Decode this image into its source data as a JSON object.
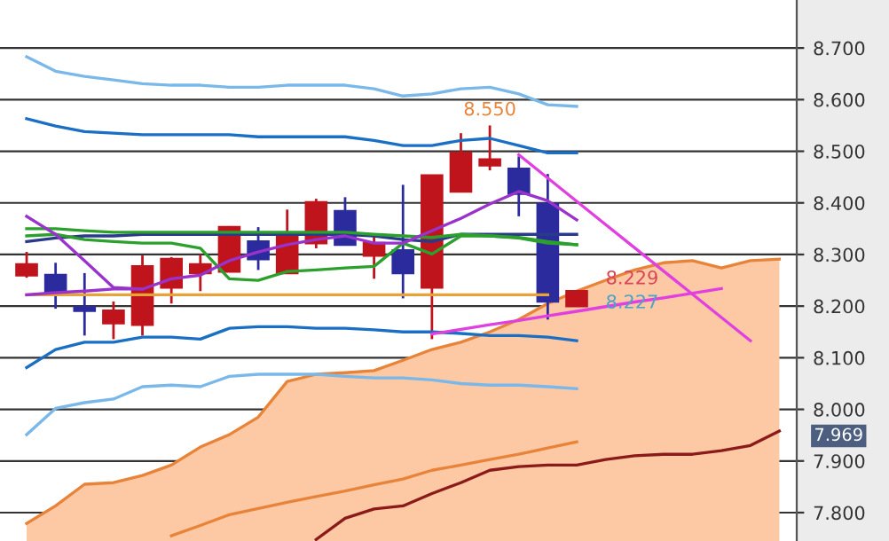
{
  "chart_data": {
    "type": "candlestick",
    "categories": [
      null,
      null,
      null,
      null,
      null,
      null,
      null,
      null,
      null,
      null,
      null,
      null,
      null,
      null,
      null,
      null,
      null,
      null,
      null,
      null,
      null,
      null,
      null,
      null,
      null,
      null,
      null
    ],
    "ohlc": [
      [
        8.26,
        8.305,
        8.255,
        8.281
      ],
      [
        8.26,
        8.284,
        8.195,
        8.226
      ],
      [
        8.198,
        8.264,
        8.143,
        8.191
      ],
      [
        8.167,
        8.209,
        8.136,
        8.191
      ],
      [
        8.164,
        8.298,
        8.143,
        8.277
      ],
      [
        8.236,
        8.295,
        8.205,
        8.291
      ],
      [
        8.264,
        8.3,
        8.229,
        8.281
      ],
      [
        8.267,
        8.355,
        8.267,
        8.353
      ],
      [
        8.325,
        8.353,
        8.27,
        8.291
      ],
      [
        8.264,
        8.387,
        8.264,
        8.339
      ],
      [
        8.322,
        8.408,
        8.312,
        8.401
      ],
      [
        8.384,
        8.411,
        8.319,
        8.319
      ],
      [
        8.298,
        8.336,
        8.253,
        8.322
      ],
      [
        8.308,
        8.435,
        8.215,
        8.264
      ],
      [
        8.236,
        8.453,
        8.136,
        8.453
      ],
      [
        8.422,
        8.535,
        8.422,
        8.497
      ],
      [
        8.473,
        8.55,
        8.463,
        8.484
      ],
      [
        8.466,
        8.49,
        8.374,
        8.418
      ],
      [
        8.398,
        8.456,
        8.174,
        8.209
      ],
      [
        8.2,
        8.229,
        8.2,
        8.229
      ],
      null,
      null,
      null,
      null,
      null,
      null,
      null
    ],
    "colors": [
      "#c0141c",
      "#2b2b9e",
      "#2b2b9e",
      "#c0141c",
      "#c0141c",
      "#c0141c",
      "#c0141c",
      "#c0141c",
      "#2b2b9e",
      "#c0141c",
      "#c0141c",
      "#2b2b9e",
      "#c0141c",
      "#2b2b9e",
      "#c0141c",
      "#c0141c",
      "#c0141c",
      "#2b2b9e",
      "#2b2b9e",
      "#c0141c",
      null,
      null,
      null,
      null,
      null,
      null,
      null
    ],
    "series": [
      {
        "type": "area",
        "color": "#fcc9a4",
        "values": [
          7.779,
          7.813,
          7.855,
          7.858,
          7.872,
          7.892,
          7.927,
          7.951,
          7.985,
          8.054,
          8.068,
          8.071,
          8.075,
          8.095,
          8.116,
          8.13,
          8.15,
          8.174,
          8.205,
          8.229,
          8.25,
          8.27,
          8.284,
          8.288,
          8.274,
          8.288,
          8.291
        ]
      },
      {
        "type": "line",
        "color": "#8b1a1a",
        "values": [
          null,
          null,
          null,
          null,
          null,
          null,
          null,
          null,
          null,
          null,
          7.748,
          7.789,
          7.807,
          7.813,
          7.837,
          7.858,
          7.882,
          7.889,
          7.892,
          7.892,
          7.903,
          7.91,
          7.913,
          7.913,
          7.92,
          7.93,
          7.958
        ]
      },
      {
        "type": "line",
        "color": "#e8843a",
        "values": [
          null,
          null,
          null,
          null,
          null,
          7.755,
          7.775,
          7.796,
          7.808,
          7.82,
          7.831,
          7.842,
          7.854,
          7.865,
          7.882,
          7.892,
          7.903,
          7.913,
          7.925,
          7.937,
          null,
          null,
          null,
          null,
          null,
          null,
          null
        ]
      },
      {
        "type": "line",
        "color": "#7ab8ea",
        "values": [
          8.683,
          8.655,
          8.645,
          8.638,
          8.631,
          8.628,
          8.628,
          8.624,
          8.624,
          8.628,
          8.628,
          8.628,
          8.621,
          8.607,
          8.611,
          8.621,
          8.624,
          8.611,
          8.59,
          8.587,
          null,
          null,
          null,
          null,
          null,
          null,
          null
        ]
      },
      {
        "type": "line",
        "color": "#1a6fc4",
        "values": [
          8.563,
          8.549,
          8.538,
          8.535,
          8.532,
          8.532,
          8.532,
          8.532,
          8.528,
          8.528,
          8.528,
          8.528,
          8.521,
          8.511,
          8.511,
          8.521,
          8.525,
          8.511,
          8.497,
          8.497,
          null,
          null,
          null,
          null,
          null,
          null,
          null
        ]
      },
      {
        "type": "line",
        "color": "#1a6fc4",
        "values": [
          8.081,
          8.116,
          8.13,
          8.13,
          8.14,
          8.14,
          8.136,
          8.157,
          8.16,
          8.16,
          8.157,
          8.157,
          8.154,
          8.15,
          8.15,
          8.147,
          8.143,
          8.143,
          8.14,
          8.133,
          null,
          null,
          null,
          null,
          null,
          null,
          null
        ]
      },
      {
        "type": "line",
        "color": "#7ab8ea",
        "values": [
          7.951,
          8.002,
          8.013,
          8.02,
          8.044,
          8.047,
          8.044,
          8.064,
          8.068,
          8.068,
          8.068,
          8.064,
          8.061,
          8.061,
          8.057,
          8.05,
          8.047,
          8.047,
          8.044,
          8.04,
          null,
          null,
          null,
          null,
          null,
          null,
          null
        ]
      },
      {
        "type": "line",
        "color": "#e8a23a",
        "values": [
          8.222,
          8.222,
          8.222,
          8.222,
          8.222,
          8.222,
          8.222,
          8.222,
          8.222,
          8.222,
          8.222,
          8.222,
          8.222,
          8.222,
          8.222,
          8.222,
          8.222,
          8.222,
          8.222,
          null,
          null,
          null,
          null,
          null,
          null,
          null,
          null
        ]
      },
      {
        "type": "line",
        "color": "#2a3a8a",
        "values": [
          8.325,
          8.332,
          8.336,
          8.336,
          8.339,
          8.339,
          8.339,
          8.339,
          8.339,
          8.339,
          8.339,
          8.339,
          8.336,
          8.329,
          8.325,
          8.339,
          8.339,
          8.339,
          8.339,
          8.339,
          null,
          null,
          null,
          null,
          null,
          null,
          null
        ]
      },
      {
        "type": "line",
        "color": "#2ca02c",
        "values": [
          8.35,
          8.35,
          8.346,
          8.343,
          8.343,
          8.343,
          8.343,
          8.343,
          8.343,
          8.343,
          8.343,
          8.343,
          8.339,
          8.336,
          8.333,
          8.339,
          8.336,
          8.333,
          8.325,
          8.319,
          null,
          null,
          null,
          null,
          null,
          null,
          null
        ]
      },
      {
        "type": "line",
        "color": "#2ca02c",
        "values": [
          8.336,
          8.339,
          8.329,
          8.325,
          8.322,
          8.322,
          8.312,
          8.253,
          8.25,
          8.267,
          8.27,
          8.274,
          8.277,
          8.322,
          8.301,
          8.336,
          8.336,
          8.332,
          8.322,
          8.319,
          null,
          null,
          null,
          null,
          null,
          null,
          null
        ]
      },
      {
        "type": "line",
        "color": "#9933cc",
        "values": [
          8.374,
          8.339,
          8.288,
          8.236,
          8.233,
          8.253,
          8.26,
          8.288,
          8.305,
          8.319,
          8.329,
          8.336,
          8.322,
          8.322,
          8.346,
          8.37,
          8.398,
          8.422,
          8.404,
          8.367,
          null,
          null,
          null,
          null,
          null,
          null,
          null
        ]
      },
      {
        "type": "line",
        "color": "#9933cc",
        "values": [
          8.222,
          8.226,
          8.229,
          8.233,
          8.233,
          null,
          null,
          null,
          null,
          null,
          null,
          null,
          null,
          null,
          null,
          null,
          null,
          null,
          null,
          null,
          null,
          null,
          null,
          null,
          null,
          null,
          null
        ]
      },
      {
        "type": "line",
        "color": "#e040e0",
        "values": [
          null,
          null,
          null,
          null,
          null,
          null,
          null,
          null,
          null,
          null,
          null,
          null,
          null,
          null,
          null,
          null,
          null,
          8.493,
          8.448,
          8.403,
          8.358,
          8.313,
          8.268,
          8.223,
          8.178,
          8.133,
          null
        ]
      },
      {
        "type": "line",
        "color": "#e040e0",
        "values": [
          null,
          null,
          null,
          null,
          null,
          null,
          null,
          null,
          null,
          null,
          null,
          null,
          null,
          null,
          8.146,
          8.155,
          8.164,
          8.172,
          8.181,
          8.19,
          8.199,
          8.208,
          8.216,
          8.225,
          8.234,
          null,
          null
        ]
      }
    ],
    "ylim": [
      7.745,
      8.793
    ],
    "yticks": [
      {
        "value": 7.8,
        "label": "7.800"
      },
      {
        "value": 7.9,
        "label": "7.900"
      },
      {
        "value": 8.0,
        "label": "8.000"
      },
      {
        "value": 8.1,
        "label": "8.100"
      },
      {
        "value": 8.2,
        "label": "8.200"
      },
      {
        "value": 8.3,
        "label": "8.300"
      },
      {
        "value": 8.4,
        "label": "8.400"
      },
      {
        "value": 8.5,
        "label": "8.500"
      },
      {
        "value": 8.6,
        "label": "8.600"
      },
      {
        "value": 8.7,
        "label": "8.700"
      }
    ],
    "grid": "y",
    "tick_labels": "y",
    "annotations": [
      "8.550",
      "8.229",
      "8.227",
      "7.969"
    ]
  }
}
